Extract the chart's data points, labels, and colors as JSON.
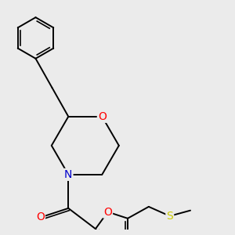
{
  "background_color": "#ebebeb",
  "bond_color": "#000000",
  "bond_width": 1.4,
  "atom_colors": {
    "O": "#ff0000",
    "N": "#0000cc",
    "S": "#cccc00",
    "C": "#000000"
  },
  "font_size": 9,
  "fig_size": [
    3.0,
    3.0
  ],
  "dpi": 100
}
